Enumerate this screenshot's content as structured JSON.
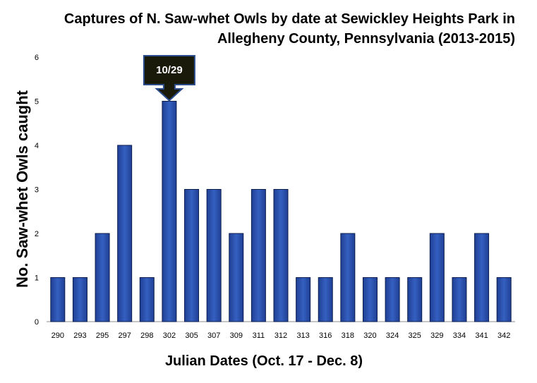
{
  "chart_data": {
    "type": "bar",
    "title_lines": [
      "Captures of N. Saw-whet Owls by date at Sewickley Heights Park in",
      "Allegheny County, Pennsylvania (2013-2015)"
    ],
    "xlabel": "Julian Dates (Oct. 17 - Dec. 8)",
    "ylabel": "No. Saw-whet Owls caught",
    "categories": [
      "290",
      "293",
      "295",
      "297",
      "298",
      "302",
      "305",
      "307",
      "309",
      "311",
      "312",
      "313",
      "316",
      "318",
      "320",
      "324",
      "325",
      "329",
      "334",
      "341",
      "342"
    ],
    "values": [
      1,
      1,
      2,
      4,
      1,
      5,
      3,
      3,
      2,
      3,
      3,
      1,
      1,
      2,
      1,
      1,
      1,
      2,
      1,
      2,
      1
    ],
    "ylim": [
      0,
      6
    ],
    "yticks": [
      "0",
      "1",
      "2",
      "3",
      "4",
      "5",
      "6"
    ],
    "grid": false,
    "bar_color": "#2c4fa8",
    "bar_edge_color": "#0d1f4f",
    "annotation": {
      "text": "10/29",
      "category": "302",
      "fill": "#1a1a0a",
      "border": "#2b4c8c"
    }
  }
}
